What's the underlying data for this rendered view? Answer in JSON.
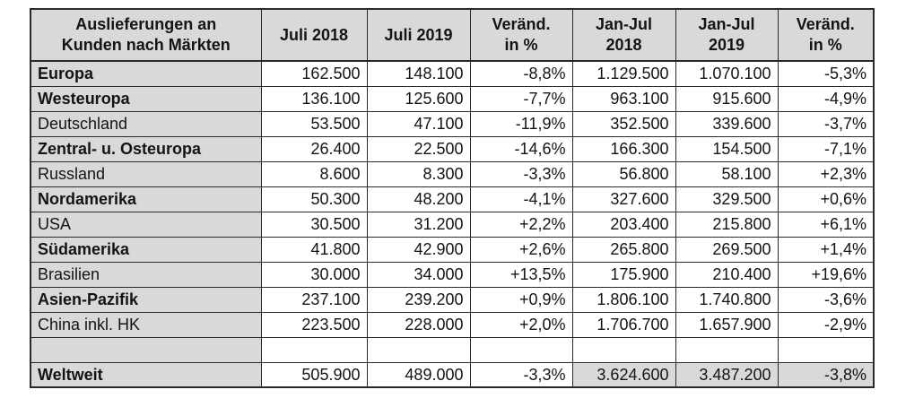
{
  "chart_data": {
    "type": "table",
    "title": "Auslieferungen an Kunden nach Märkten",
    "columns": [
      {
        "line1": "Auslieferungen an",
        "line2": "Kunden nach Märkten"
      },
      {
        "line1": "Juli 2018",
        "line2": ""
      },
      {
        "line1": "Juli 2019",
        "line2": ""
      },
      {
        "line1": "Veränd.",
        "line2": "in %"
      },
      {
        "line1": "Jan-Jul",
        "line2": "2018"
      },
      {
        "line1": "Jan-Jul",
        "line2": "2019"
      },
      {
        "line1": "Veränd.",
        "line2": "in %"
      }
    ],
    "rows": [
      {
        "label": "Europa",
        "bold": true,
        "total": false,
        "values": [
          "162.500",
          "148.100",
          "-8,8%",
          "1.129.500",
          "1.070.100",
          "-5,3%"
        ]
      },
      {
        "label": "Westeuropa",
        "bold": true,
        "total": false,
        "values": [
          "136.100",
          "125.600",
          "-7,7%",
          "963.100",
          "915.600",
          "-4,9%"
        ]
      },
      {
        "label": "Deutschland",
        "bold": false,
        "total": false,
        "values": [
          "53.500",
          "47.100",
          "-11,9%",
          "352.500",
          "339.600",
          "-3,7%"
        ]
      },
      {
        "label": "Zentral- u. Osteuropa",
        "bold": true,
        "total": false,
        "values": [
          "26.400",
          "22.500",
          "-14,6%",
          "166.300",
          "154.500",
          "-7,1%"
        ]
      },
      {
        "label": "Russland",
        "bold": false,
        "total": false,
        "values": [
          "8.600",
          "8.300",
          "-3,3%",
          "56.800",
          "58.100",
          "+2,3%"
        ]
      },
      {
        "label": "Nordamerika",
        "bold": true,
        "total": false,
        "values": [
          "50.300",
          "48.200",
          "-4,1%",
          "327.600",
          "329.500",
          "+0,6%"
        ]
      },
      {
        "label": "USA",
        "bold": false,
        "total": false,
        "values": [
          "30.500",
          "31.200",
          "+2,2%",
          "203.400",
          "215.800",
          "+6,1%"
        ]
      },
      {
        "label": "Südamerika",
        "bold": true,
        "total": false,
        "values": [
          "41.800",
          "42.900",
          "+2,6%",
          "265.800",
          "269.500",
          "+1,4%"
        ]
      },
      {
        "label": "Brasilien",
        "bold": false,
        "total": false,
        "values": [
          "30.000",
          "34.000",
          "+13,5%",
          "175.900",
          "210.400",
          "+19,6%"
        ]
      },
      {
        "label": "Asien-Pazifik",
        "bold": true,
        "total": false,
        "values": [
          "237.100",
          "239.200",
          "+0,9%",
          "1.806.100",
          "1.740.800",
          "-3,6%"
        ]
      },
      {
        "label": "China inkl. HK",
        "bold": false,
        "total": false,
        "values": [
          "223.500",
          "228.000",
          "+2,0%",
          "1.706.700",
          "1.657.900",
          "-2,9%"
        ]
      },
      {
        "label": "",
        "bold": false,
        "total": false,
        "values": [
          "",
          "",
          "",
          "",
          "",
          ""
        ]
      },
      {
        "label": "Weltweit",
        "bold": true,
        "total": true,
        "values": [
          "505.900",
          "489.000",
          "-3,3%",
          "3.624.600",
          "3.487.200",
          "-3,8%"
        ]
      }
    ]
  },
  "colors": {
    "cell_gray": "#d9d9d9",
    "border": "#2a2a2a",
    "text": "#141414",
    "background": "#ffffff"
  }
}
